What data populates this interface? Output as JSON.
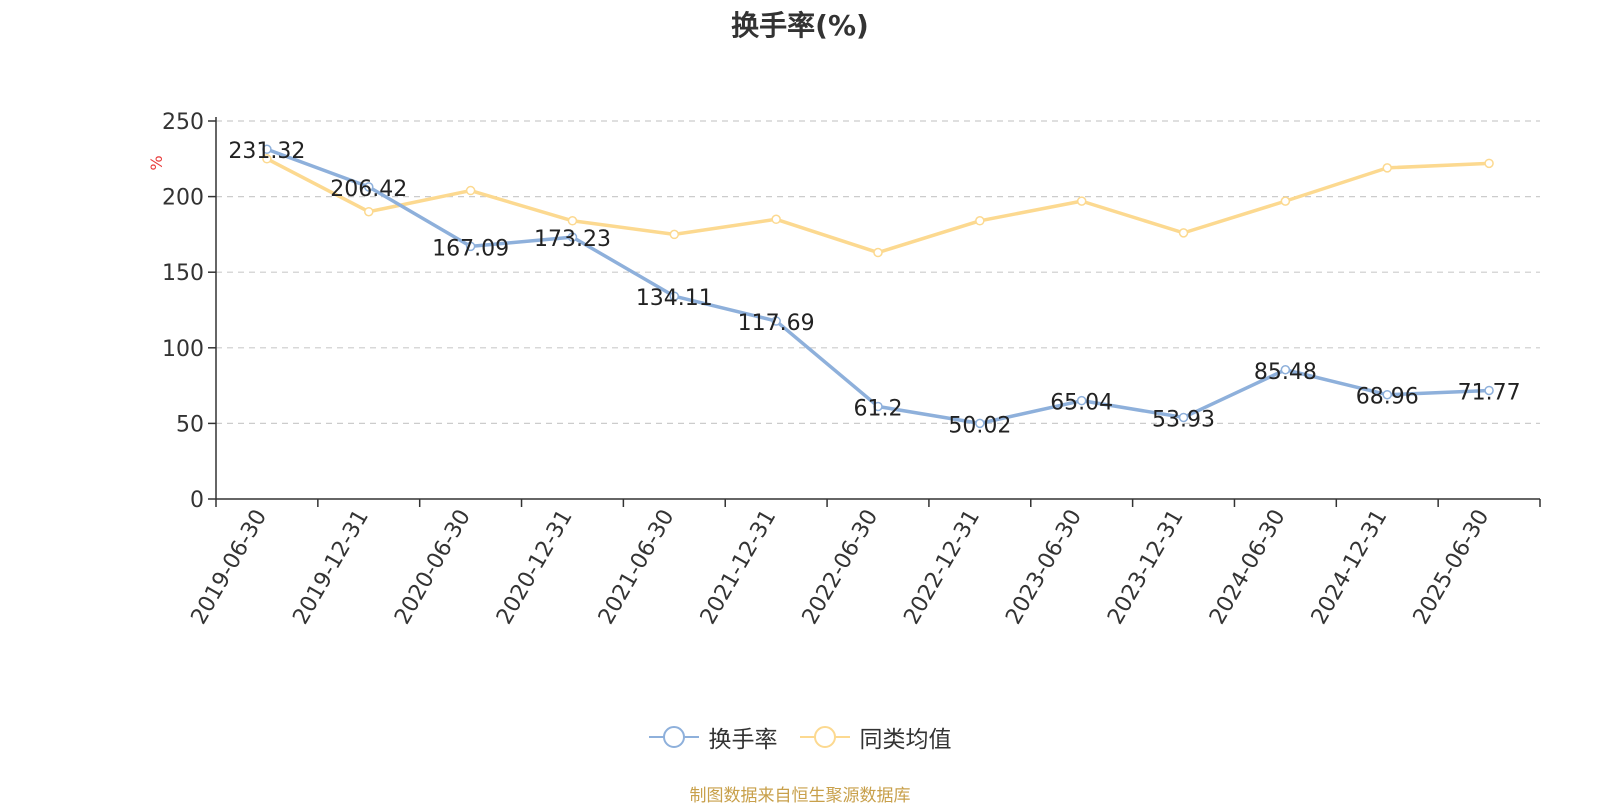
{
  "chart_data": {
    "type": "line",
    "title": "换手率(%)",
    "ylabel": "%",
    "xlabel": "",
    "ylim": [
      0,
      250
    ],
    "yticks": [
      0,
      50,
      100,
      150,
      200,
      250
    ],
    "grid": true,
    "legend_position": "bottom",
    "categories": [
      "2019-06-30",
      "2019-12-31",
      "2020-06-30",
      "2020-12-31",
      "2021-06-30",
      "2021-12-31",
      "2022-06-30",
      "2022-12-31",
      "2023-06-30",
      "2023-12-31",
      "2024-06-30",
      "2024-12-31",
      "2025-06-30"
    ],
    "series": [
      {
        "name": "换手率",
        "color": "#8eb0db",
        "show_labels": true,
        "values": [
          231.32,
          206.42,
          167.09,
          173.23,
          134.11,
          117.69,
          61.2,
          50.02,
          65.04,
          53.93,
          85.48,
          68.96,
          71.77
        ]
      },
      {
        "name": "同类均值",
        "color": "#fcd990",
        "show_labels": false,
        "values": [
          225,
          190,
          204,
          184,
          175,
          185,
          163,
          184,
          197,
          176,
          197,
          219,
          222
        ]
      }
    ]
  },
  "source_note": "制图数据来自恒生聚源数据库"
}
